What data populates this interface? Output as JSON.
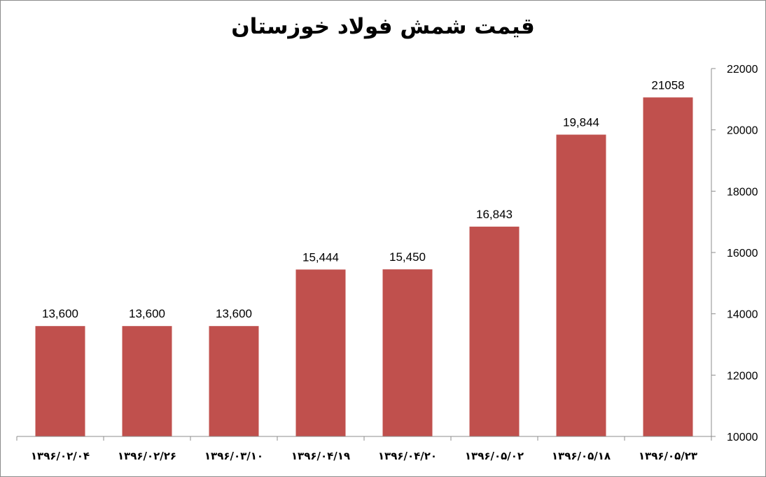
{
  "chart_data": {
    "type": "bar",
    "title": "قیمت شمش فولاد خوزستان",
    "categories": [
      "۱۳۹۶/۰۲/۰۴",
      "۱۳۹۶/۰۲/۲۶",
      "۱۳۹۶/۰۳/۱۰",
      "۱۳۹۶/۰۴/۱۹",
      "۱۳۹۶/۰۴/۲۰",
      "۱۳۹۶/۰۵/۰۲",
      "۱۳۹۶/۰۵/۱۸",
      "۱۳۹۶/۰۵/۲۳"
    ],
    "values": [
      13600,
      13600,
      13600,
      15444,
      15450,
      16843,
      19844,
      21058
    ],
    "data_labels": [
      "13,600",
      "13,600",
      "13,600",
      "15,444",
      "15,450",
      "16,843",
      "19,844",
      "21058"
    ],
    "ylim": [
      10000,
      22000
    ],
    "yticks": [
      "10000",
      "12000",
      "14000",
      "16000",
      "18000",
      "20000",
      "22000"
    ],
    "y_axis_side": "right",
    "grid": false,
    "bar_color": "#c0504d"
  }
}
